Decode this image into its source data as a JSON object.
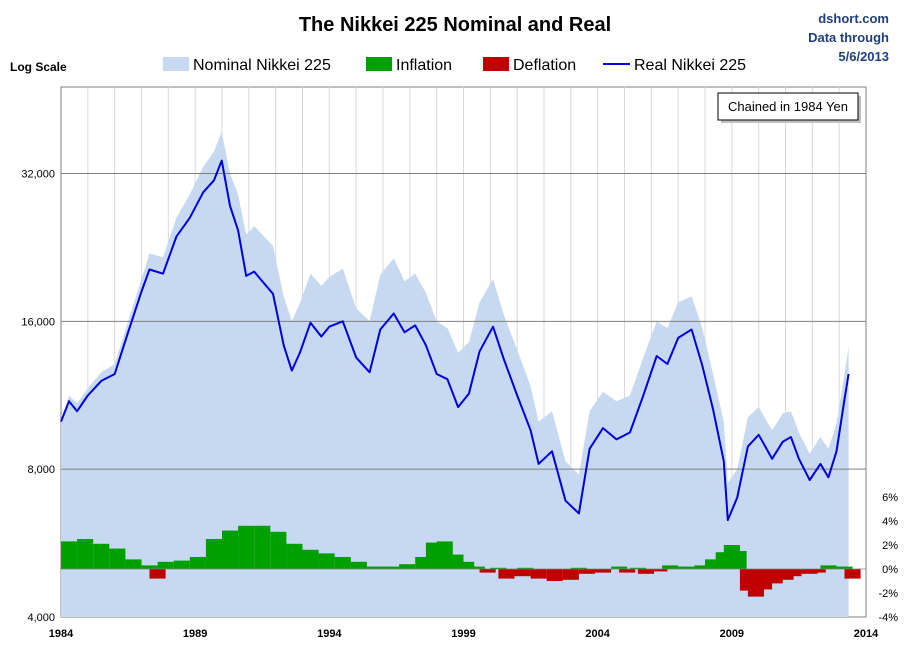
{
  "chart_data": {
    "type": "area",
    "title": "The Nikkei 225 Nominal and Real",
    "source_lines": [
      "dshort.com",
      "Data through",
      "5/6/2013"
    ],
    "scale_label": "Log Scale",
    "annotation": "Chained in 1984 Yen",
    "legend_placement": "top",
    "grid": true,
    "x_ticks": [
      1984,
      1989,
      1994,
      1999,
      2004,
      2009,
      2014
    ],
    "xlim": [
      1984,
      2014
    ],
    "y_ticks": [
      {
        "value": 4000,
        "label": "4,000"
      },
      {
        "value": 8000,
        "label": "8,000"
      },
      {
        "value": 16000,
        "label": "16,000"
      },
      {
        "value": 32000,
        "label": "32,000"
      }
    ],
    "ylim": [
      4000,
      48000
    ],
    "y_scale": "log",
    "y2_ticks": [
      {
        "value": -4,
        "label": "-4%"
      },
      {
        "value": -2,
        "label": "-2%"
      },
      {
        "value": 0,
        "label": "0%"
      },
      {
        "value": 2,
        "label": "2%"
      },
      {
        "value": 4,
        "label": "4%"
      },
      {
        "value": 6,
        "label": "6%"
      }
    ],
    "y2lim": [
      -4,
      6
    ],
    "series": [
      {
        "name": "Nominal Nikkei 225",
        "kind": "area",
        "color": "#c6d9f1",
        "x": [
          1984.0,
          1984.3,
          1984.6,
          1985.0,
          1985.5,
          1986.0,
          1986.5,
          1987.0,
          1987.3,
          1987.8,
          1988.3,
          1988.8,
          1989.3,
          1989.7,
          1989.99,
          1990.3,
          1990.6,
          1990.9,
          1991.2,
          1991.5,
          1991.9,
          1992.3,
          1992.6,
          1992.9,
          1993.3,
          1993.7,
          1994.0,
          1994.5,
          1995.0,
          1995.5,
          1995.9,
          1996.4,
          1996.8,
          1997.2,
          1997.6,
          1998.0,
          1998.4,
          1998.8,
          1999.2,
          1999.6,
          2000.1,
          2000.5,
          2001.0,
          2001.5,
          2001.8,
          2002.3,
          2002.8,
          2003.3,
          2003.7,
          2004.2,
          2004.7,
          2005.2,
          2005.7,
          2006.2,
          2006.6,
          2007.0,
          2007.5,
          2007.9,
          2008.3,
          2008.7,
          2008.85,
          2009.2,
          2009.6,
          2010.0,
          2010.5,
          2010.9,
          2011.2,
          2011.5,
          2011.9,
          2012.3,
          2012.6,
          2012.9,
          2013.2,
          2013.35
        ],
        "values": [
          10000,
          11300,
          10900,
          11700,
          12600,
          13100,
          16000,
          19500,
          22000,
          21600,
          26000,
          29000,
          33000,
          35500,
          38900,
          32000,
          29000,
          24000,
          25000,
          24000,
          22800,
          18000,
          16000,
          17400,
          20000,
          18900,
          19700,
          20500,
          17000,
          16000,
          19900,
          21500,
          19300,
          20000,
          18300,
          16000,
          15500,
          13800,
          14500,
          17500,
          19500,
          16500,
          14000,
          11800,
          10000,
          10500,
          8300,
          7800,
          10500,
          11500,
          11000,
          11300,
          13500,
          16000,
          15500,
          17500,
          18000,
          15500,
          12500,
          10000,
          7500,
          8000,
          10200,
          10700,
          9600,
          10400,
          10500,
          9500,
          8600,
          9300,
          8800,
          9900,
          12500,
          14200
        ]
      },
      {
        "name": "Inflation",
        "kind": "bar",
        "color": "#00a000",
        "x": [
          1984.0,
          1984.6,
          1985.2,
          1985.8,
          1986.4,
          1987.0,
          1987.6,
          1988.2,
          1988.8,
          1989.4,
          1990.0,
          1990.6,
          1991.2,
          1991.8,
          1992.4,
          1993.0,
          1993.6,
          1994.2,
          1994.8,
          1995.4,
          1996.0,
          1996.6,
          1997.2,
          1997.6,
          1998.0,
          1998.4,
          1998.8,
          1999.2,
          2000.0,
          2001.0,
          2003.0,
          2004.5,
          2005.2,
          2006.4,
          2007.0,
          2007.6,
          2008.0,
          2008.4,
          2008.7,
          2008.95,
          2012.3,
          2012.9
        ],
        "values": [
          2.3,
          2.5,
          2.1,
          1.7,
          0.8,
          0.3,
          0.6,
          0.7,
          1.0,
          2.5,
          3.2,
          3.6,
          3.6,
          3.1,
          2.1,
          1.6,
          1.3,
          1.0,
          0.6,
          0.2,
          0.2,
          0.4,
          1.0,
          2.2,
          2.3,
          1.2,
          0.6,
          0.2,
          0.1,
          0.1,
          0.1,
          0.2,
          0.1,
          0.3,
          0.2,
          0.3,
          0.8,
          1.4,
          2.0,
          1.5,
          0.3,
          0.2
        ]
      },
      {
        "name": "Deflation",
        "kind": "bar",
        "color": "#c00000",
        "x": [
          1987.3,
          1999.6,
          2000.3,
          2000.9,
          2001.5,
          2002.1,
          2002.7,
          2003.3,
          2003.9,
          2004.8,
          2005.5,
          2006.0,
          2009.3,
          2009.6,
          2009.9,
          2010.3,
          2010.7,
          2011.0,
          2011.6,
          2011.9,
          2013.2
        ],
        "values": [
          -0.8,
          -0.3,
          -0.8,
          -0.6,
          -0.8,
          -1.0,
          -0.9,
          -0.4,
          -0.3,
          -0.3,
          -0.4,
          -0.2,
          -1.8,
          -2.3,
          -1.7,
          -1.2,
          -0.9,
          -0.6,
          -0.4,
          -0.3,
          -0.8
        ]
      },
      {
        "name": "Real Nikkei 225",
        "kind": "line",
        "color": "#0000dd",
        "x": [
          1984.0,
          1984.3,
          1984.6,
          1985.0,
          1985.5,
          1986.0,
          1986.5,
          1987.0,
          1987.3,
          1987.8,
          1988.3,
          1988.8,
          1989.3,
          1989.7,
          1989.99,
          1990.3,
          1990.6,
          1990.9,
          1991.2,
          1991.5,
          1991.9,
          1992.3,
          1992.6,
          1992.9,
          1993.3,
          1993.7,
          1994.0,
          1994.5,
          1995.0,
          1995.5,
          1995.9,
          1996.4,
          1996.8,
          1997.2,
          1997.6,
          1998.0,
          1998.4,
          1998.8,
          1999.2,
          1999.6,
          2000.1,
          2000.5,
          2001.0,
          2001.5,
          2001.8,
          2002.3,
          2002.8,
          2003.3,
          2003.7,
          2004.2,
          2004.7,
          2005.2,
          2005.7,
          2006.2,
          2006.6,
          2007.0,
          2007.5,
          2007.9,
          2008.3,
          2008.7,
          2008.85,
          2009.2,
          2009.6,
          2010.0,
          2010.5,
          2010.9,
          2011.2,
          2011.5,
          2011.9,
          2012.3,
          2012.6,
          2012.9,
          2013.2,
          2013.35
        ],
        "values": [
          10000,
          11000,
          10500,
          11300,
          12100,
          12500,
          15200,
          18400,
          20400,
          20000,
          23800,
          26000,
          29300,
          31000,
          34000,
          27500,
          24500,
          19800,
          20200,
          19300,
          18200,
          14300,
          12700,
          13800,
          15900,
          14900,
          15600,
          16000,
          13500,
          12600,
          15400,
          16600,
          15200,
          15700,
          14300,
          12500,
          12200,
          10700,
          11400,
          13900,
          15600,
          13400,
          11300,
          9600,
          8200,
          8700,
          6900,
          6500,
          8800,
          9700,
          9200,
          9500,
          11300,
          13600,
          13100,
          14800,
          15400,
          13000,
          10600,
          8300,
          6300,
          7000,
          8900,
          9400,
          8400,
          9100,
          9300,
          8400,
          7600,
          8200,
          7700,
          8700,
          11100,
          12500
        ]
      }
    ]
  }
}
